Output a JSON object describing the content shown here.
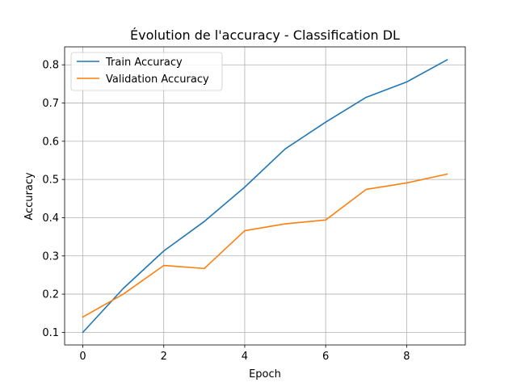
{
  "chart_data": {
    "type": "line",
    "title": "Évolution de l'accuracy - Classification DL",
    "xlabel": "Epoch",
    "ylabel": "Accuracy",
    "x": [
      0,
      1,
      2,
      3,
      4,
      5,
      6,
      7,
      8,
      9
    ],
    "xlim": [
      -0.45,
      9.45
    ],
    "ylim": [
      0.067,
      0.847
    ],
    "xticks": [
      0,
      2,
      4,
      6,
      8
    ],
    "xtick_labels": [
      "0",
      "2",
      "4",
      "6",
      "8"
    ],
    "yticks": [
      0.1,
      0.2,
      0.3,
      0.4,
      0.5,
      0.6,
      0.7,
      0.8
    ],
    "ytick_labels": [
      "0.1",
      "0.2",
      "0.3",
      "0.4",
      "0.5",
      "0.6",
      "0.7",
      "0.8"
    ],
    "grid": true,
    "legend_position": "upper-left",
    "series": [
      {
        "name": "Train Accuracy",
        "color": "#1f77b4",
        "values": [
          0.1,
          0.215,
          0.313,
          0.39,
          0.48,
          0.58,
          0.65,
          0.715,
          0.755,
          0.813
        ]
      },
      {
        "name": "Validation Accuracy",
        "color": "#ff7f0e",
        "values": [
          0.14,
          0.2,
          0.275,
          0.267,
          0.366,
          0.384,
          0.394,
          0.474,
          0.491,
          0.514
        ]
      }
    ]
  }
}
